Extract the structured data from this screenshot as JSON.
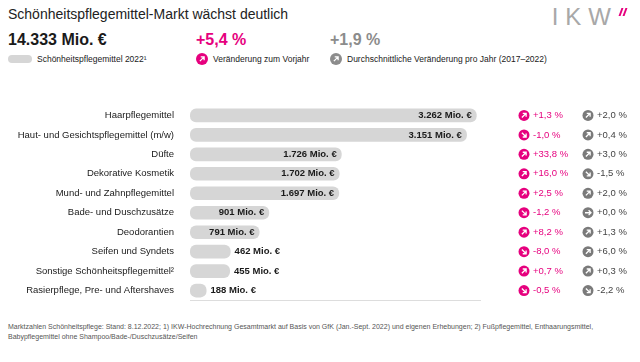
{
  "chart_data": {
    "type": "bar",
    "orientation": "horizontal",
    "title": "Schönheitspflegemittel-Markt wächst deutlich",
    "logo": "IKW",
    "summary": [
      {
        "value": 14333,
        "label": "14.333 Mio. €",
        "text": "Schönheitspflegemittel 2022¹"
      },
      {
        "value": 5.4,
        "label": "+5,4 %",
        "text": "Veränderung zum Vorjahr"
      },
      {
        "value": 1.9,
        "label": "+1,9 %",
        "text": "Durchschnittliche Veränderung pro Jahr (2017–2022)"
      }
    ],
    "categories": [
      "Haarpflegemittel",
      "Haut- und Gesichtspflegemittel (m/w)",
      "Düfte",
      "Dekorative Kosmetik",
      "Mund- und Zahnpflegemittel",
      "Bade- und Duschzusätze",
      "Deodorantien",
      "Seifen und Syndets",
      "Sonstige Schönheitspflegemittel²",
      "Rasierpflege, Pre- und Aftershaves"
    ],
    "values": [
      3262,
      3151,
      1726,
      1702,
      1697,
      901,
      791,
      462,
      455,
      188
    ],
    "value_labels": [
      "3.262 Mio. €",
      "3.151 Mio. €",
      "1.726 Mio. €",
      "1.702 Mio. €",
      "1.697 Mio. €",
      "901 Mio. €",
      "791 Mio. €",
      "462 Mio. €",
      "455 Mio. €",
      "188 Mio. €"
    ],
    "prev_year_change": [
      1.3,
      -1.0,
      33.8,
      16.0,
      2.5,
      -1.2,
      8.2,
      -8.0,
      0.7,
      -0.5
    ],
    "prev_year_change_labels": [
      "+1,3 %",
      "-1,0 %",
      "+33,8 %",
      "+16,0 %",
      "+2,5 %",
      "-1,2 %",
      "+8,2 %",
      "-8,0 %",
      "+0,7 %",
      "-0,5 %"
    ],
    "avg_change": [
      2.0,
      0.4,
      3.0,
      -1.5,
      2.0,
      0.0,
      1.3,
      6.0,
      0.3,
      -2.2
    ],
    "avg_change_labels": [
      "+2,0 %",
      "+0,4 %",
      "+3,0 %",
      "-1,5 %",
      "+2,0 %",
      "+0,0 %",
      "+1,3 %",
      "+6,0 %",
      "+0,3 %",
      "-2,2 %"
    ],
    "data_labels": true,
    "color": "#d6d6d6",
    "xlim": [
      0,
      3300
    ],
    "tick_labels": "y",
    "grid": false,
    "footnote": "Marktzahlen Schönheitspflege: Stand: 8.12.2022; 1) IKW-Hochrechnung Gesamtmarkt auf Basis von GfK (Jan.-Sept. 2022) und eigenen Erhebungen; 2) Fußpflegemittel, Enthaarungsmittel, Babypflegemittel ohne Shampoo/Bade-/Duschzusätze/Seifen"
  }
}
